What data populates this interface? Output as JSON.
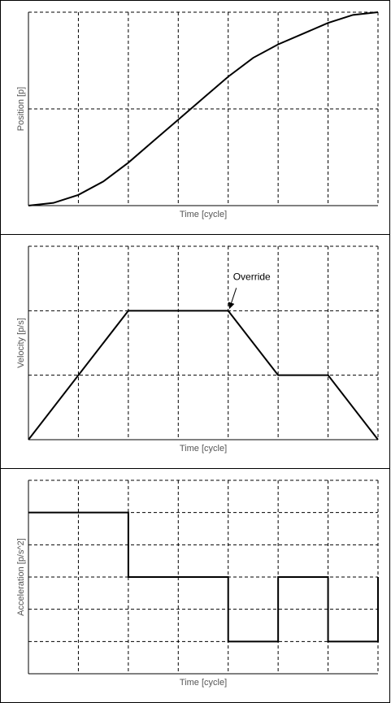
{
  "chart_data": [
    {
      "type": "line",
      "xlabel": "Time [cycle]",
      "ylabel": "Position [p]",
      "x": [
        0,
        0.5,
        1,
        1.5,
        2,
        2.5,
        3,
        3.5,
        4,
        4.5,
        5,
        5.5,
        6,
        6.5,
        7
      ],
      "values": [
        0,
        0.028,
        0.111,
        0.25,
        0.444,
        0.667,
        0.889,
        1.111,
        1.333,
        1.528,
        1.667,
        1.778,
        1.889,
        1.972,
        2.0
      ],
      "color": "#000000",
      "xlim": [
        0,
        7
      ],
      "ylim": [
        0,
        2
      ],
      "xticks": [
        0,
        1,
        2,
        3,
        4,
        5,
        6,
        7
      ],
      "yticks": [
        0,
        1,
        2
      ],
      "grid": true
    },
    {
      "type": "line",
      "xlabel": "Time [cycle]",
      "ylabel": "Velocity [p/s]",
      "x": [
        0,
        2,
        4,
        5,
        6,
        7
      ],
      "values": [
        0,
        2,
        2,
        1,
        1,
        0
      ],
      "color": "#000000",
      "xlim": [
        0,
        7
      ],
      "ylim": [
        0,
        3
      ],
      "xticks": [
        0,
        1,
        2,
        3,
        4,
        5,
        6,
        7
      ],
      "yticks": [
        0,
        1,
        2,
        3
      ],
      "grid": true,
      "annotation": {
        "text": "Override",
        "x": 4,
        "y": 2
      }
    },
    {
      "type": "line",
      "xlabel": "Time [cycle]",
      "ylabel": "Acceleration [p/s^2]",
      "x": [
        0,
        2,
        2,
        4,
        4,
        5,
        5,
        6,
        6,
        7,
        7
      ],
      "values": [
        2,
        2,
        0,
        0,
        -2,
        -2,
        0,
        0,
        -2,
        -2,
        0
      ],
      "color": "#000000",
      "xlim": [
        0,
        7
      ],
      "ylim": [
        -3,
        3
      ],
      "xticks": [
        0,
        1,
        2,
        3,
        4,
        5,
        6,
        7
      ],
      "yticks": [
        -3,
        -2,
        -1,
        0,
        1,
        2,
        3
      ],
      "grid": true
    }
  ]
}
